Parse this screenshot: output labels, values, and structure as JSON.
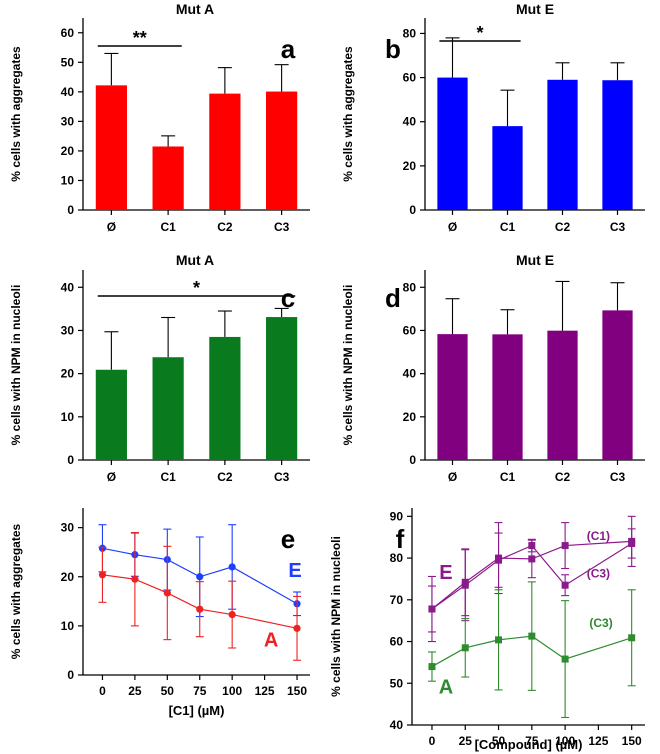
{
  "chart_data": [
    {
      "id": "a",
      "type": "bar",
      "title": "Mut A",
      "panel_label": "a",
      "ylabel": "% cells with aggregates",
      "xlabel": "",
      "categories": [
        "Ø",
        "C1",
        "C2",
        "C3"
      ],
      "values": [
        42.2,
        21.5,
        39.4,
        40.1
      ],
      "errors": [
        10.8,
        3.6,
        8.8,
        9.1
      ],
      "ylim": [
        0,
        65
      ],
      "yticks": [
        0,
        10,
        20,
        30,
        40,
        50,
        60
      ],
      "color": "#ff0000",
      "significance": [
        {
          "from": 0,
          "to": 1,
          "label": "**"
        }
      ]
    },
    {
      "id": "b",
      "type": "bar",
      "title": "Mut E",
      "panel_label": "b",
      "ylabel": "% cells with aggregates",
      "xlabel": "",
      "categories": [
        "Ø",
        "C1",
        "C2",
        "C3"
      ],
      "values": [
        60.0,
        38.0,
        59.0,
        58.8
      ],
      "errors": [
        18.0,
        16.3,
        7.7,
        7.9
      ],
      "ylim": [
        0,
        87
      ],
      "yticks": [
        0,
        20,
        40,
        60,
        80
      ],
      "color": "#0000ff",
      "significance": [
        {
          "from": 0,
          "to": 1,
          "label": "*"
        }
      ]
    },
    {
      "id": "c",
      "type": "bar",
      "title": "Mut A",
      "panel_label": "c",
      "ylabel": "% cells with NPM in nucleoli",
      "xlabel": "",
      "categories": [
        "Ø",
        "C1",
        "C2",
        "C3"
      ],
      "values": [
        20.9,
        23.8,
        28.5,
        33.1
      ],
      "errors": [
        8.8,
        9.2,
        6.0,
        2.0
      ],
      "ylim": [
        0,
        44
      ],
      "yticks": [
        0,
        10,
        20,
        30,
        40
      ],
      "color": "#0a7a1e",
      "significance": [
        {
          "from": 0,
          "to": 3,
          "label": "*"
        }
      ]
    },
    {
      "id": "d",
      "type": "bar",
      "title": "Mut E",
      "panel_label": "d",
      "ylabel": "% cells with NPM in nucleoli",
      "xlabel": "",
      "categories": [
        "Ø",
        "C1",
        "C2",
        "C3"
      ],
      "values": [
        58.3,
        58.2,
        59.9,
        69.3
      ],
      "errors": [
        16.4,
        11.4,
        22.8,
        12.8
      ],
      "ylim": [
        0,
        88
      ],
      "yticks": [
        0,
        20,
        40,
        60,
        80
      ],
      "color": "#800080",
      "significance": []
    },
    {
      "id": "e",
      "type": "line",
      "title": "",
      "panel_label": "e",
      "ylabel": "% cells with aggregates",
      "xlabel": "[C1] (µM)",
      "x": [
        0,
        25,
        50,
        75,
        100,
        150
      ],
      "xlim": [
        -15,
        160
      ],
      "xticks": [
        0,
        25,
        50,
        75,
        100,
        125,
        150
      ],
      "ylim": [
        0,
        34
      ],
      "yticks": [
        0,
        10,
        20,
        30
      ],
      "series": [
        {
          "name": "E",
          "color": "#1f3fff",
          "values": [
            25.8,
            24.5,
            23.5,
            20.0,
            22.0,
            14.5
          ],
          "errors": [
            4.8,
            4.4,
            6.2,
            8.1,
            8.6,
            2.4
          ]
        },
        {
          "name": "A",
          "color": "#ee2222",
          "values": [
            20.4,
            19.5,
            16.7,
            13.4,
            12.3,
            9.5
          ],
          "errors": [
            5.6,
            9.5,
            9.5,
            5.6,
            6.8,
            6.5
          ]
        }
      ]
    },
    {
      "id": "f",
      "type": "line",
      "title": "",
      "panel_label": "f",
      "ylabel": "% cells with NPM in nucleoli",
      "xlabel": "[Compound] (µM)",
      "x": [
        0,
        25,
        50,
        75,
        100,
        150
      ],
      "xlim": [
        -15,
        160
      ],
      "xticks": [
        0,
        25,
        50,
        75,
        100,
        125,
        150
      ],
      "ylim": [
        40,
        92
      ],
      "yticks": [
        40,
        50,
        60,
        70,
        80,
        90
      ],
      "group_labels": {
        "E": "E",
        "A": "A"
      },
      "series": [
        {
          "name": "E (C1)",
          "color": "#8b1a8b",
          "values": [
            67.8,
            74.2,
            80.0,
            79.8,
            83.0,
            84.0
          ],
          "errors": [
            7.8,
            8.0,
            8.5,
            4.5,
            5.5,
            6.0
          ]
        },
        {
          "name": "E (C3)",
          "color": "#8b1a8b",
          "values": [
            67.8,
            73.5,
            79.5,
            83.0,
            73.5,
            83.5
          ],
          "errors": [
            5.5,
            8.5,
            6.5,
            1.5,
            2.5,
            3.5
          ]
        },
        {
          "name": "A (C3)",
          "color": "#2e8b2e",
          "values": [
            54.0,
            58.5,
            60.4,
            61.3,
            55.8,
            60.9
          ],
          "errors": [
            3.5,
            7.0,
            12.0,
            13.0,
            14.0,
            11.5
          ]
        }
      ],
      "annotations": [
        "(C1)",
        "(C3)",
        "(C3)"
      ]
    }
  ]
}
